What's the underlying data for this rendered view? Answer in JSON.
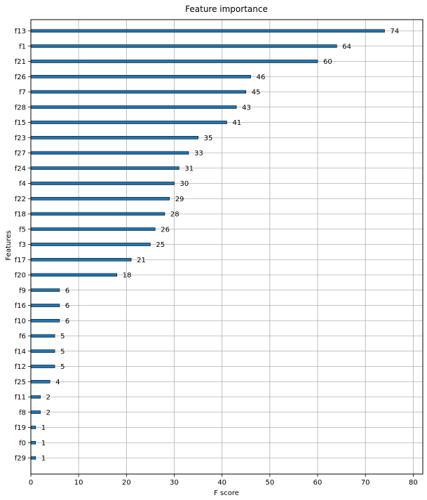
{
  "chart_data": {
    "type": "bar",
    "orientation": "horizontal",
    "title": "Feature importance",
    "xlabel": "F score",
    "ylabel": "Features",
    "xlim": [
      0,
      82
    ],
    "xticks": [
      0,
      10,
      20,
      30,
      40,
      50,
      60,
      70,
      80
    ],
    "grid": true,
    "bar_color": "#1f77b4",
    "categories": [
      "f13",
      "f1",
      "f21",
      "f26",
      "f7",
      "f28",
      "f15",
      "f23",
      "f27",
      "f24",
      "f4",
      "f22",
      "f18",
      "f5",
      "f3",
      "f17",
      "f20",
      "f9",
      "f16",
      "f10",
      "f6",
      "f14",
      "f12",
      "f25",
      "f11",
      "f8",
      "f19",
      "f0",
      "f29"
    ],
    "values": [
      74,
      64,
      60,
      46,
      45,
      43,
      41,
      35,
      33,
      31,
      30,
      29,
      28,
      26,
      25,
      21,
      18,
      6,
      6,
      6,
      5,
      5,
      5,
      4,
      2,
      2,
      1,
      1,
      1
    ]
  }
}
